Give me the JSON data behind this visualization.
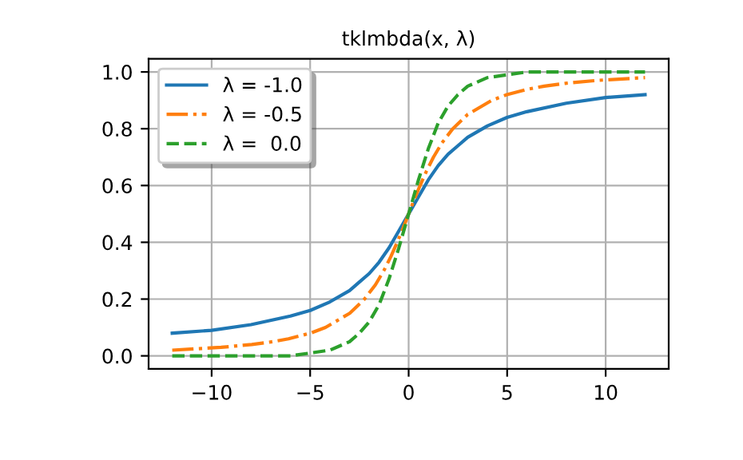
{
  "chart_data": {
    "type": "line",
    "title": "tklmbda(x, λ)",
    "xlim": [
      -13.2,
      13.2
    ],
    "ylim": [
      -0.046,
      1.046
    ],
    "xticks": [
      {
        "value": -10,
        "label": "−10"
      },
      {
        "value": -5,
        "label": "−5"
      },
      0,
      5,
      10
    ],
    "yticks": [
      {
        "value": 0,
        "label": "0.0"
      },
      {
        "value": 0.2,
        "label": "0.2"
      },
      {
        "value": 0.4,
        "label": "0.4"
      },
      {
        "value": 0.6,
        "label": "0.6"
      },
      {
        "value": 0.8,
        "label": "0.8"
      },
      {
        "value": 1,
        "label": "1.0"
      }
    ],
    "grid": true,
    "legend": "top left",
    "marker": "none",
    "series": [
      {
        "name": "λ = -1.0",
        "color": "#1f77b4",
        "line_style": "solid",
        "x": [
          -12,
          -10,
          -8,
          -6,
          -5,
          -4,
          -3,
          -2.5,
          -2,
          -1.5,
          -1,
          -0.5,
          0,
          0.5,
          1,
          1.5,
          2,
          2.5,
          3,
          4,
          5,
          6,
          8,
          10,
          12
        ],
        "values": [
          0.08,
          0.09,
          0.11,
          0.14,
          0.16,
          0.19,
          0.23,
          0.26,
          0.29,
          0.33,
          0.38,
          0.44,
          0.5,
          0.56,
          0.62,
          0.67,
          0.71,
          0.74,
          0.77,
          0.81,
          0.84,
          0.86,
          0.89,
          0.91,
          0.92
        ]
      },
      {
        "name": "λ = -0.5",
        "color": "#ff7f0e",
        "line_style": "dashdot",
        "x": [
          -12,
          -9.52,
          -7.96,
          -6.89,
          -6.1,
          -4.99,
          -4.22,
          -2.99,
          -2.24,
          -1.69,
          -1.26,
          -0.9,
          -0.58,
          -0.28,
          0,
          0.28,
          0.58,
          0.9,
          1.26,
          1.69,
          2.24,
          2.99,
          4.22,
          4.99,
          6.1,
          6.89,
          7.96,
          9.52,
          12
        ],
        "values": [
          0.02,
          0.03,
          0.04,
          0.05,
          0.06,
          0.08,
          0.1,
          0.15,
          0.2,
          0.25,
          0.3,
          0.35,
          0.4,
          0.45,
          0.5,
          0.55,
          0.6,
          0.65,
          0.7,
          0.75,
          0.8,
          0.85,
          0.9,
          0.92,
          0.94,
          0.95,
          0.96,
          0.97,
          0.98
        ]
      },
      {
        "name": "λ =  0.0",
        "color": "#2ca02c",
        "line_style": "dashed",
        "x": [
          -12,
          -10,
          -8,
          -6,
          -5,
          -4,
          -3,
          -2.5,
          -2,
          -1.5,
          -1,
          -0.5,
          0,
          0.5,
          1,
          1.5,
          2,
          2.5,
          3,
          4,
          5,
          6,
          8,
          10,
          12
        ],
        "values": [
          0.0,
          0.0,
          0.0,
          0.0,
          0.01,
          0.02,
          0.05,
          0.08,
          0.12,
          0.18,
          0.27,
          0.38,
          0.5,
          0.62,
          0.73,
          0.82,
          0.88,
          0.92,
          0.95,
          0.98,
          0.99,
          1.0,
          1.0,
          1.0,
          1.0
        ]
      }
    ]
  }
}
